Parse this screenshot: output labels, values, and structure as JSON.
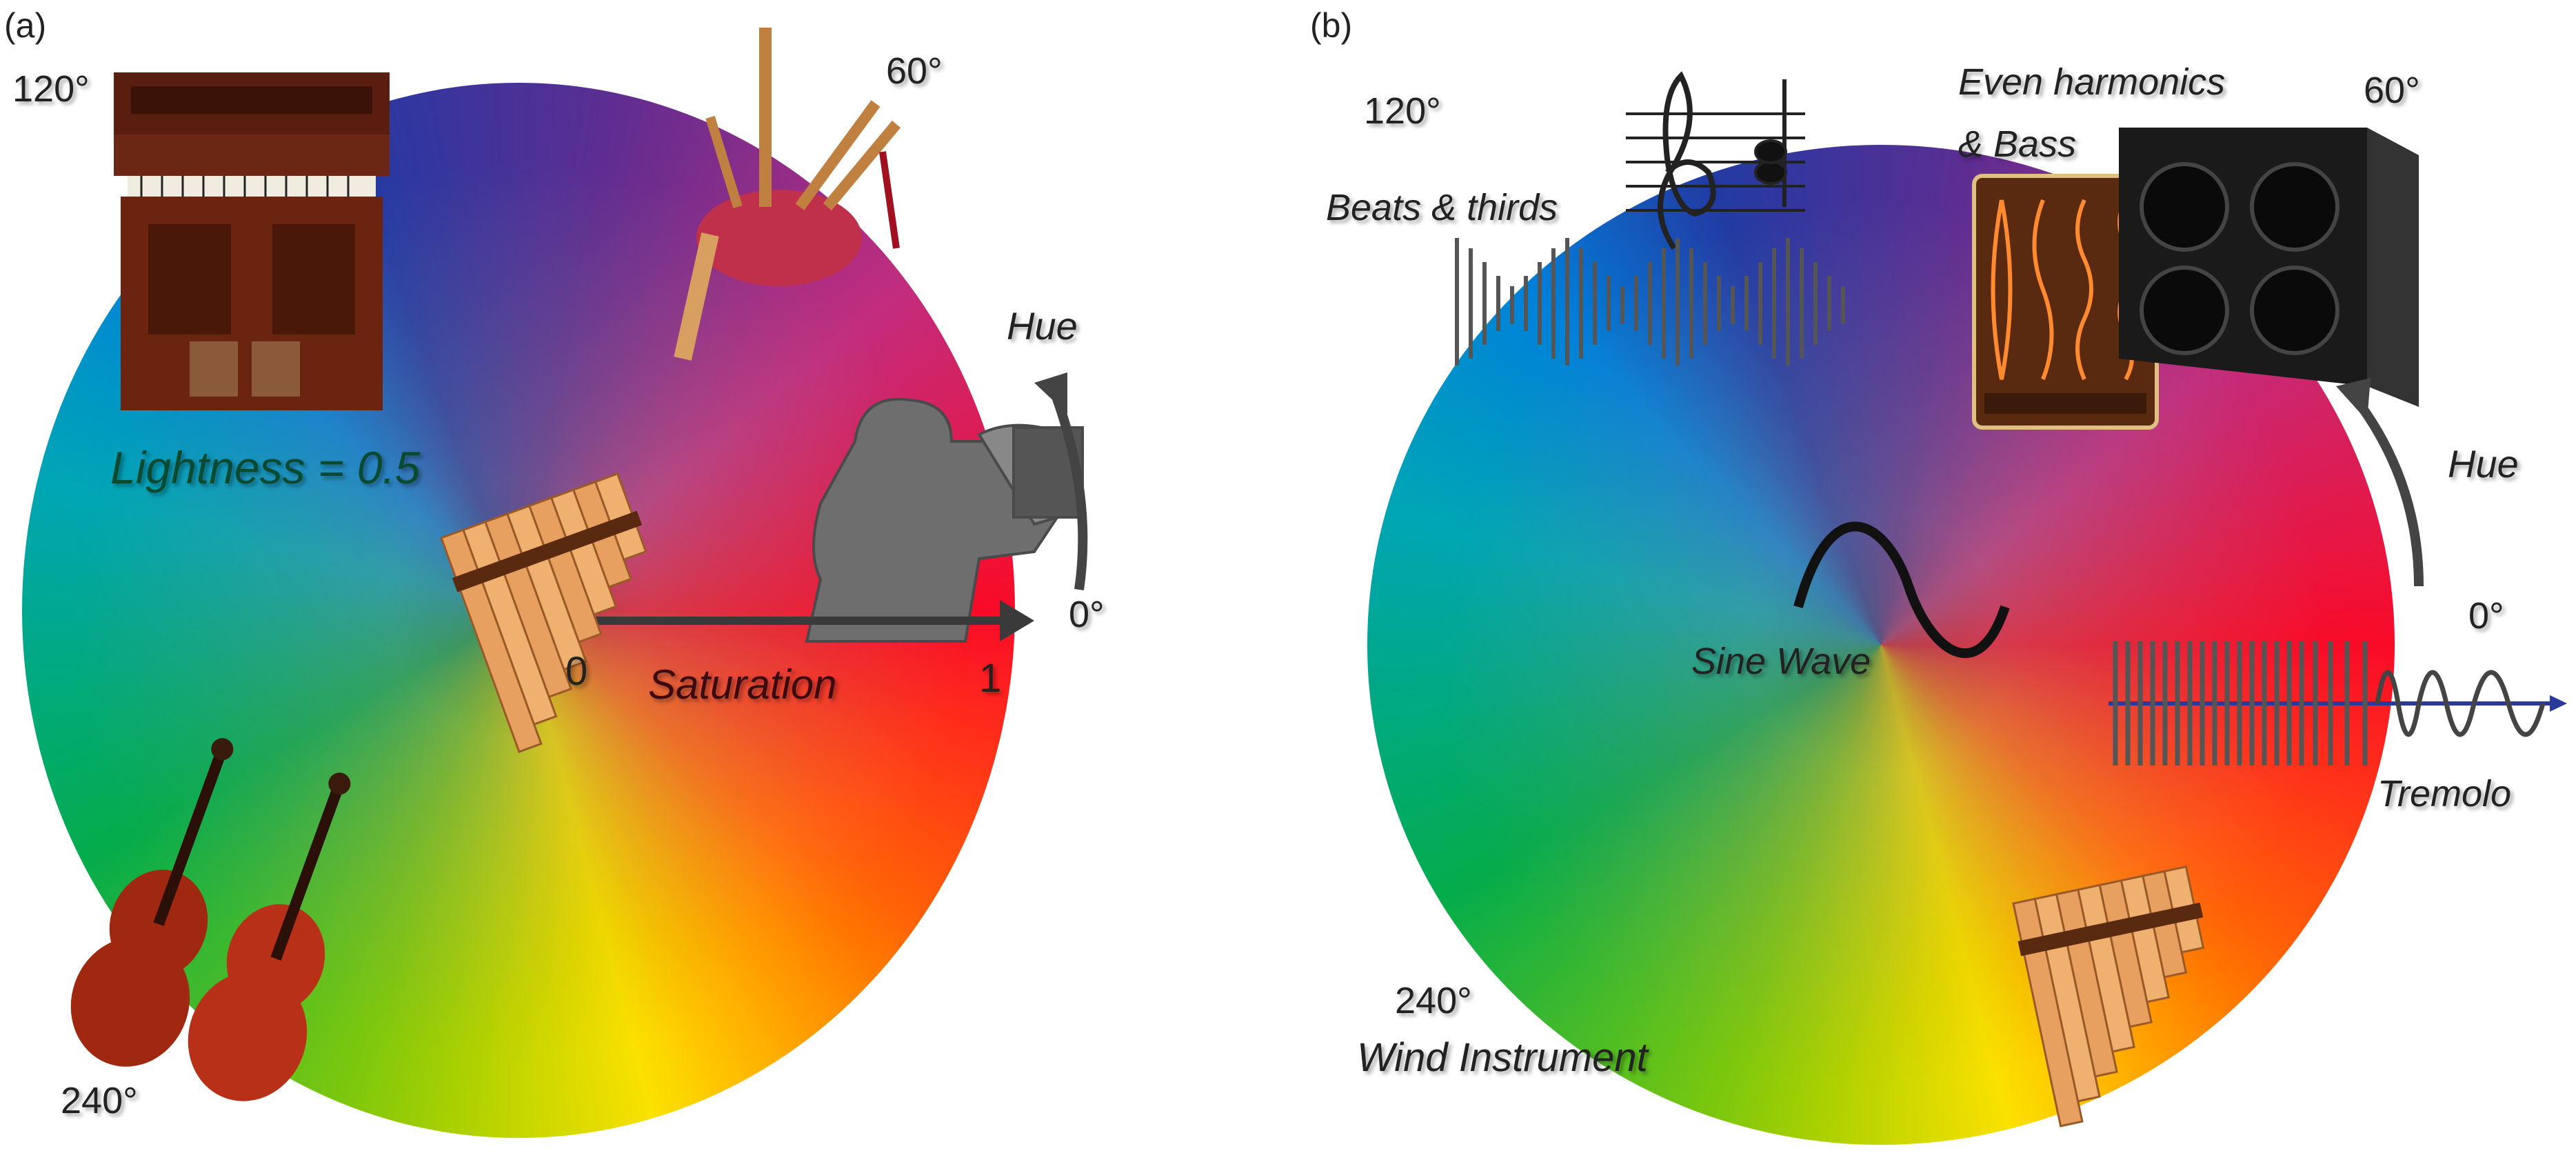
{
  "panel_a": {
    "tag": "(a)",
    "angle_120": "120°",
    "angle_60": "60°",
    "angle_0": "0°",
    "angle_240": "240°",
    "hue": "Hue",
    "lightness": "Lightness = 0.5",
    "sat_0": "0",
    "sat_1": "1",
    "saturation": "Saturation",
    "icons": [
      "reed-organ-icon",
      "bagpipes-icon",
      "trumpet-players-icon",
      "pan-flute-icon",
      "violins-icon"
    ]
  },
  "panel_b": {
    "tag": "(b)",
    "angle_120": "120°",
    "angle_60": "60°",
    "angle_0": "0°",
    "angle_240": "240°",
    "hue": "Hue",
    "beats": "Beats & thirds",
    "even_1": "Even harmonics",
    "even_2": "& Bass",
    "sine": "Sine Wave",
    "tremolo": "Tremolo",
    "wind": "Wind Instrument",
    "icons": [
      "music-staff-icon",
      "beats-waveform-icon",
      "harmonic-series-icon",
      "speaker-cabinet-icon",
      "sine-wave-icon",
      "tremolo-waveform-icon",
      "pan-flute-icon"
    ]
  }
}
